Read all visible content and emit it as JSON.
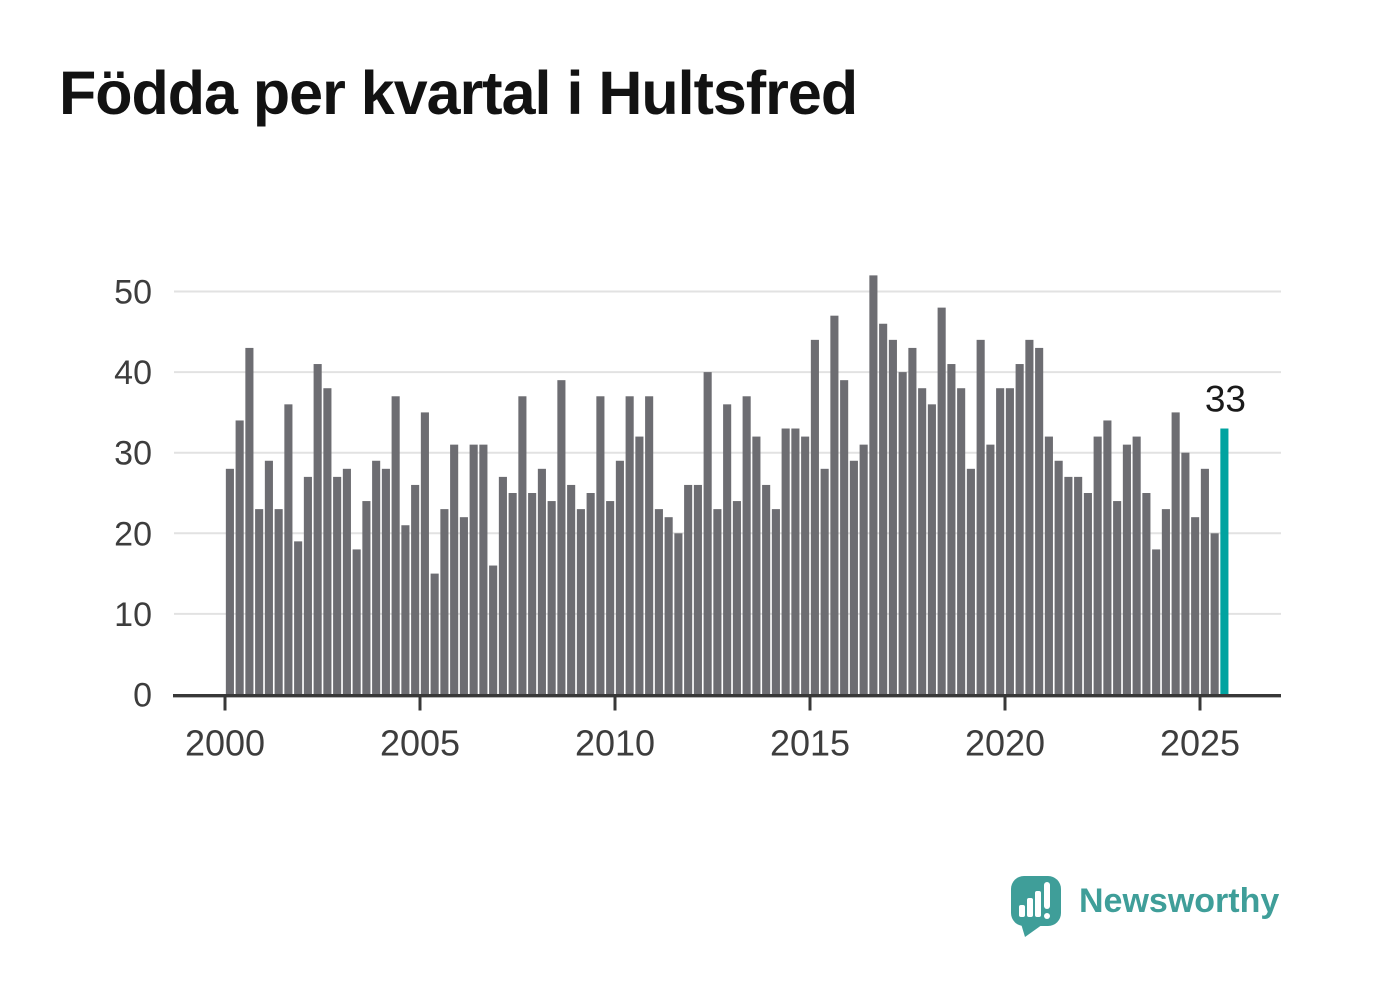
{
  "title": "Födda per kvartal i Hultsfred",
  "colors": {
    "background": "#ffffff",
    "title_text": "#121212",
    "axis_line": "#383838",
    "tick_label": "#3d3d3d",
    "gridline": "#e2e2e2",
    "bar": "#6d6d72",
    "highlight": "#00a3a0",
    "value_label": "#1a1a1a",
    "brand": "#3f9e99"
  },
  "chart_data": {
    "type": "bar",
    "title": "Födda per kvartal i Hultsfred",
    "x_start_year": 2000,
    "x_start_quarter": 1,
    "x_end_year": 2025,
    "x_end_quarter": 3,
    "values": [
      28,
      34,
      43,
      23,
      29,
      23,
      36,
      19,
      27,
      41,
      38,
      27,
      28,
      18,
      24,
      29,
      28,
      37,
      21,
      26,
      35,
      15,
      23,
      31,
      22,
      31,
      31,
      16,
      27,
      25,
      37,
      25,
      28,
      24,
      39,
      26,
      23,
      25,
      37,
      24,
      29,
      37,
      32,
      37,
      23,
      22,
      20,
      26,
      26,
      40,
      23,
      36,
      24,
      37,
      32,
      26,
      23,
      33,
      33,
      32,
      44,
      28,
      47,
      39,
      29,
      31,
      52,
      46,
      44,
      40,
      43,
      38,
      36,
      48,
      41,
      38,
      28,
      44,
      31,
      38,
      38,
      41,
      44,
      43,
      32,
      29,
      27,
      27,
      25,
      32,
      34,
      24,
      31,
      32,
      25,
      18,
      23,
      35,
      30,
      22,
      28,
      20,
      33
    ],
    "xticks": [
      2000,
      2005,
      2010,
      2015,
      2020,
      2025
    ],
    "yticks": [
      0,
      10,
      20,
      30,
      40,
      50
    ],
    "ylim": [
      0,
      52
    ],
    "grid": true,
    "legend": "none",
    "highlight_index": 102,
    "highlight_label": "33"
  },
  "footer": {
    "brand": "Newsworthy",
    "logo_icon": "newsworthy-speech-bubble-bar-chart-icon"
  }
}
